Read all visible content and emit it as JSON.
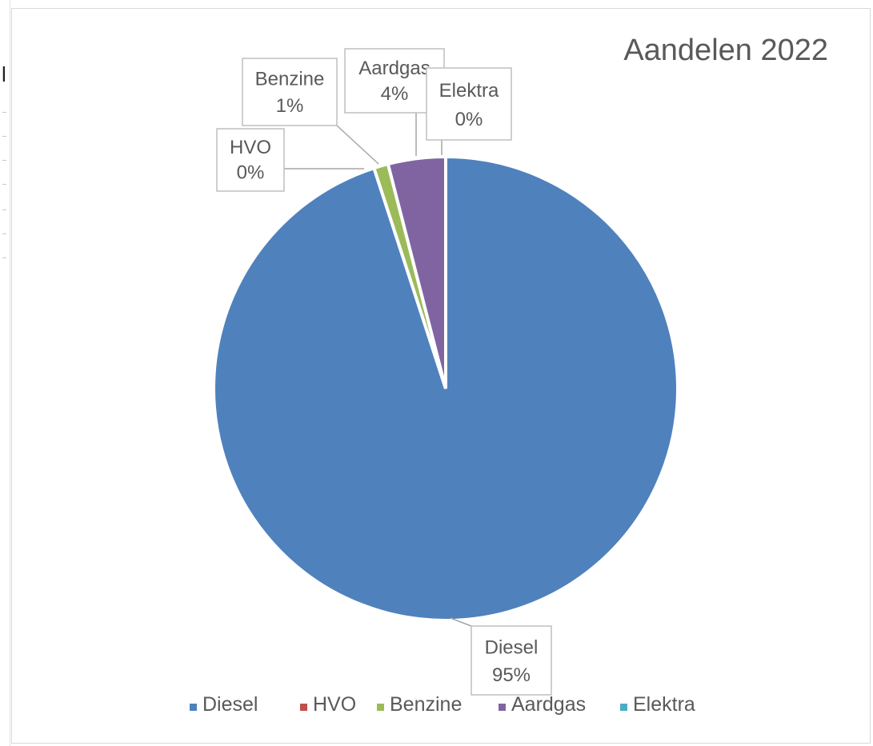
{
  "chart_data": {
    "type": "pie",
    "title": "Aandelen 2022",
    "slices": [
      {
        "name": "Diesel",
        "value": 95,
        "label": "95%",
        "color": "#4F81BD"
      },
      {
        "name": "HVO",
        "value": 0,
        "label": "0%",
        "color": "#C0504D"
      },
      {
        "name": "Benzine",
        "value": 1,
        "label": "1%",
        "color": "#9BBB59"
      },
      {
        "name": "Aardgas",
        "value": 4,
        "label": "4%",
        "color": "#8064A2"
      },
      {
        "name": "Elektra",
        "value": 0,
        "label": "0%",
        "color": "#4BACC6"
      }
    ],
    "legend_position": "bottom"
  }
}
